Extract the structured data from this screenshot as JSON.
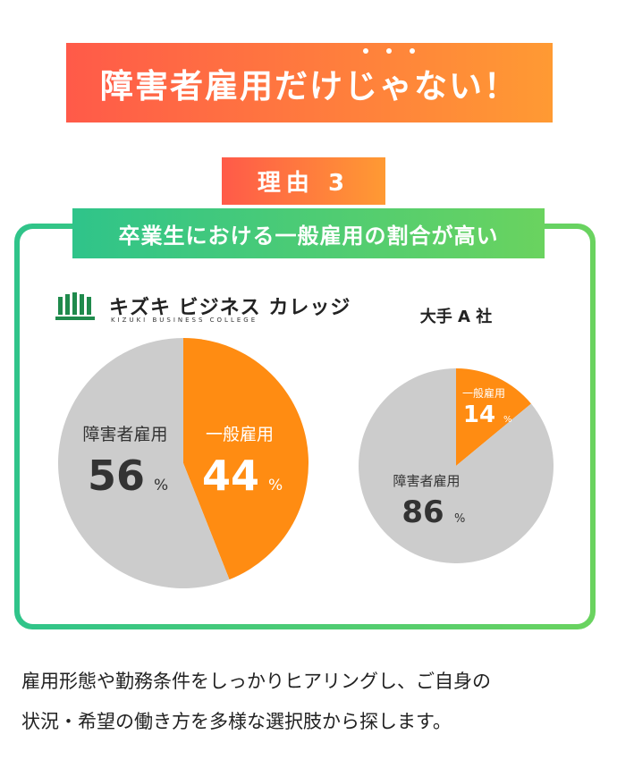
{
  "headline": {
    "text": "障害者雇用だけじゃない！"
  },
  "reason": {
    "label": "理由 3"
  },
  "banner": {
    "text": "卒業生における一般雇用の割合が高い"
  },
  "logo": {
    "name": "キズキ ビジネス カレッジ",
    "subtitle": "KIZUKI BUSINESS COLLEGE"
  },
  "company": {
    "name": "大手 A 社"
  },
  "colors": {
    "orange": "#ff8c12",
    "gray": "#cccccc",
    "green": "#1f8a4c",
    "text_dark": "#333333"
  },
  "chart_data": [
    {
      "type": "pie",
      "title": "",
      "slices": [
        {
          "label": "一般雇用",
          "value": 44,
          "unit": "%",
          "color": "#ff8c12"
        },
        {
          "label": "障害者雇用",
          "value": 56,
          "unit": "%",
          "color": "#cccccc"
        }
      ]
    },
    {
      "type": "pie",
      "title": "大手 A 社",
      "slices": [
        {
          "label": "一般雇用",
          "value": 14,
          "unit": "%",
          "color": "#ff8c12"
        },
        {
          "label": "障害者雇用",
          "value": 86,
          "unit": "%",
          "color": "#cccccc"
        }
      ]
    }
  ],
  "body": {
    "line1": "雇用形態や勤務条件をしっかりヒアリングし、ご自身の",
    "line2": "状況・希望の働き方を多様な選択肢から探します。"
  }
}
